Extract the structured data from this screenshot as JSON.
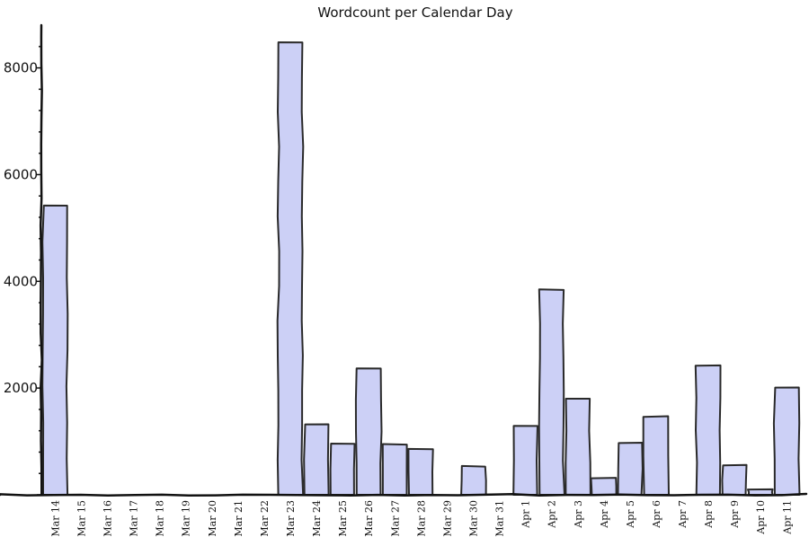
{
  "chart_data": {
    "type": "bar",
    "title": "Wordcount per Calendar Day",
    "xlabel": "",
    "ylabel": "",
    "ylim": [
      0,
      8700
    ],
    "yticks": [
      2000,
      4000,
      6000,
      8000
    ],
    "categories": [
      "Mar 14",
      "Mar 15",
      "Mar 16",
      "Mar 17",
      "Mar 18",
      "Mar 19",
      "Mar 20",
      "Mar 21",
      "Mar 22",
      "Mar 23",
      "Mar 24",
      "Mar 25",
      "Mar 26",
      "Mar 27",
      "Mar 28",
      "Mar 29",
      "Mar 30",
      "Mar 31",
      "Apr 1",
      "Apr 2",
      "Apr 3",
      "Apr 4",
      "Apr 5",
      "Apr 6",
      "Apr 7",
      "Apr 8",
      "Apr 9",
      "Apr 10",
      "Apr 11"
    ],
    "values": [
      5420,
      0,
      0,
      0,
      0,
      0,
      0,
      0,
      0,
      8480,
      1320,
      960,
      2370,
      950,
      860,
      0,
      540,
      0,
      1290,
      3850,
      1800,
      310,
      970,
      1460,
      0,
      2420,
      550,
      100,
      2010
    ],
    "colors": {
      "bar_fill": "#ccd0f6",
      "bar_stroke": "#2a2a2a",
      "axis": "#111111"
    },
    "grid": false,
    "legend": "none"
  }
}
